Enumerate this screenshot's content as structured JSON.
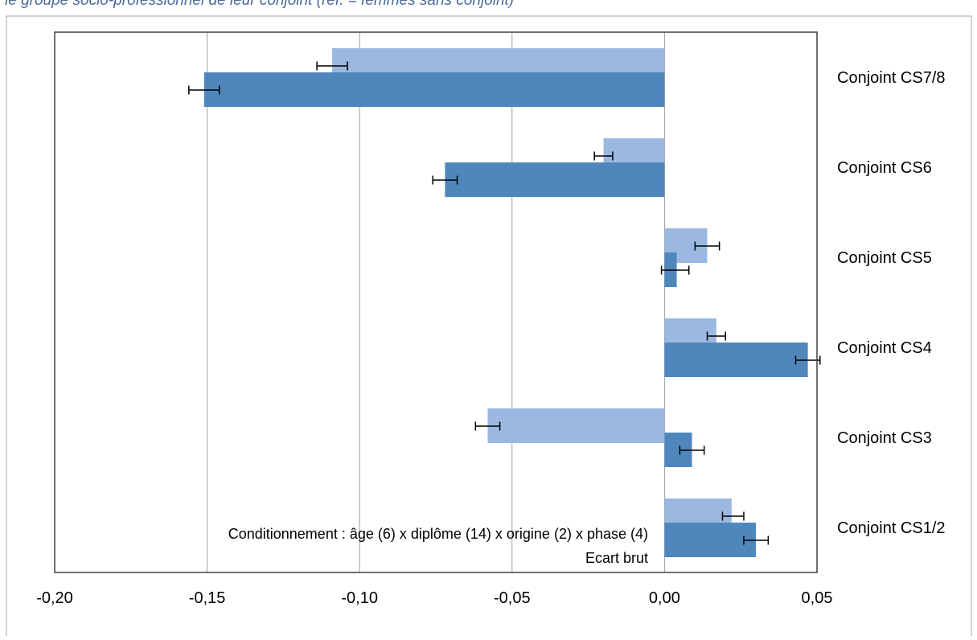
{
  "header": {
    "cut_title": "le groupe socio-professionnel de leur conjoint (réf. = femmes sans conjoint)"
  },
  "colors": {
    "conditional": "#9ab8e0",
    "raw": "#4f87bc",
    "gridline": "#a0a0a0",
    "frame": "#404040",
    "error_bar": "#000000"
  },
  "chart_data": {
    "type": "bar",
    "orientation": "horizontal",
    "categories": [
      "Conjoint CS7/8",
      "Conjoint CS6",
      "Conjoint CS5",
      "Conjoint CS4",
      "Conjoint CS3",
      "Conjoint CS1/2"
    ],
    "series": [
      {
        "name": "Conditionnement : âge (6) x diplôme (14) x origine (2) x phase (4)",
        "values": [
          -0.109,
          -0.02,
          0.014,
          0.017,
          -0.058,
          0.022
        ],
        "error_low": [
          -0.114,
          -0.023,
          0.01,
          0.014,
          -0.062,
          0.019
        ],
        "error_high": [
          -0.104,
          -0.017,
          0.018,
          0.02,
          -0.054,
          0.026
        ]
      },
      {
        "name": "Ecart brut",
        "values": [
          -0.151,
          -0.072,
          0.004,
          0.047,
          0.009,
          0.03
        ],
        "error_low": [
          -0.156,
          -0.076,
          -0.001,
          0.043,
          0.005,
          0.026
        ],
        "error_high": [
          -0.146,
          -0.068,
          0.008,
          0.051,
          0.013,
          0.034
        ]
      }
    ],
    "xlim": [
      -0.2,
      0.05
    ],
    "xticks": [
      -0.2,
      -0.15,
      -0.1,
      -0.05,
      0.0,
      0.05
    ],
    "xtick_labels": [
      "-0,20",
      "-0,15",
      "-0,10",
      "-0,05",
      "0,00",
      "0,05"
    ],
    "grid": "vertical",
    "legend": "bottom-left, inside plot"
  }
}
